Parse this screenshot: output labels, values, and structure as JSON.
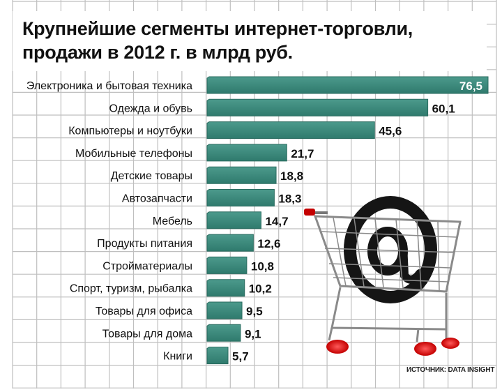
{
  "title_line1": "Крупнейшие сегменты интернет-торговли,",
  "title_line2": "продажи в 2012 г. в млрд руб.",
  "source": "ИСТОЧНИК: DATA INSIGHT",
  "colors": {
    "bar": "#3d8a7d",
    "bar_edge": "#2a6b5f",
    "grid": "#bfbfbf",
    "text": "#111111"
  },
  "chart_data": {
    "type": "bar",
    "orientation": "horizontal",
    "title": "Крупнейшие сегменты интернет-торговли, продажи в 2012 г. в млрд руб.",
    "categories": [
      "Электроника и бытовая техника",
      "Одежда и обувь",
      "Компьютеры и ноутбуки",
      "Мобильные телефоны",
      "Детские товары",
      "Автозапчасти",
      "Мебель",
      "Продукты питания",
      "Стройматериалы",
      "Спорт, туризм, рыбалка",
      "Товары для офиса",
      "Товары для дома",
      "Книги"
    ],
    "values": [
      76.5,
      60.1,
      45.6,
      21.7,
      18.8,
      18.3,
      14.7,
      12.6,
      10.8,
      10.2,
      9.5,
      9.1,
      5.7
    ],
    "value_labels": [
      "76,5",
      "60,1",
      "45,6",
      "21,7",
      "18,8",
      "18,3",
      "14,7",
      "12,6",
      "10,8",
      "10,2",
      "9,5",
      "9,1",
      "5,7"
    ],
    "xlim": [
      0,
      76.5
    ],
    "grid": true,
    "legend": "none",
    "source": "ИСТОЧНИК: DATA INSIGHT"
  }
}
